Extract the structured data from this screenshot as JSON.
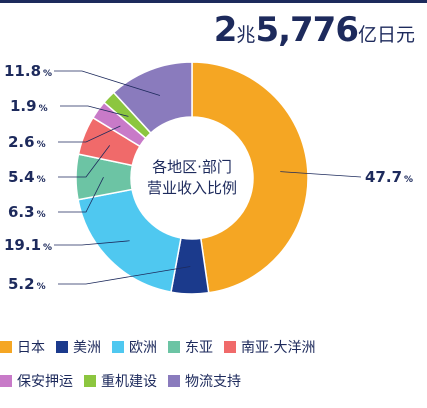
{
  "header": {
    "total_big_1": "2",
    "total_unit_1": "兆",
    "total_big_2": "5,776",
    "total_unit_2": "亿日元"
  },
  "center_label": {
    "line1": "各地区·部门",
    "line2": "营业收入比例"
  },
  "chart_data": {
    "type": "pie",
    "donut": true,
    "title": "",
    "start_angle_deg": 0,
    "direction": "clockwise",
    "slices": [
      {
        "name": "日本",
        "value": 47.7,
        "label": "47.7",
        "color": "#f5a623"
      },
      {
        "name": "美洲",
        "value": 5.2,
        "label": "5.2",
        "color": "#1b3a8c"
      },
      {
        "name": "欧洲",
        "value": 19.1,
        "label": "19.1",
        "color": "#4fc8f0"
      },
      {
        "name": "东亚",
        "value": 6.3,
        "label": "6.3",
        "color": "#6cc4a4"
      },
      {
        "name": "南亚·大洋洲",
        "value": 5.4,
        "label": "5.4",
        "color": "#f06a6a"
      },
      {
        "name": "保安押运",
        "value": 2.6,
        "label": "2.6",
        "color": "#c87ac8"
      },
      {
        "name": "重机建设",
        "value": 1.9,
        "label": "1.9",
        "color": "#8cc63f"
      },
      {
        "name": "物流支持",
        "value": 11.8,
        "label": "11.8",
        "color": "#8a7bbd"
      }
    ],
    "percent_sign": "%",
    "legend": {
      "placement": "bottom"
    }
  }
}
